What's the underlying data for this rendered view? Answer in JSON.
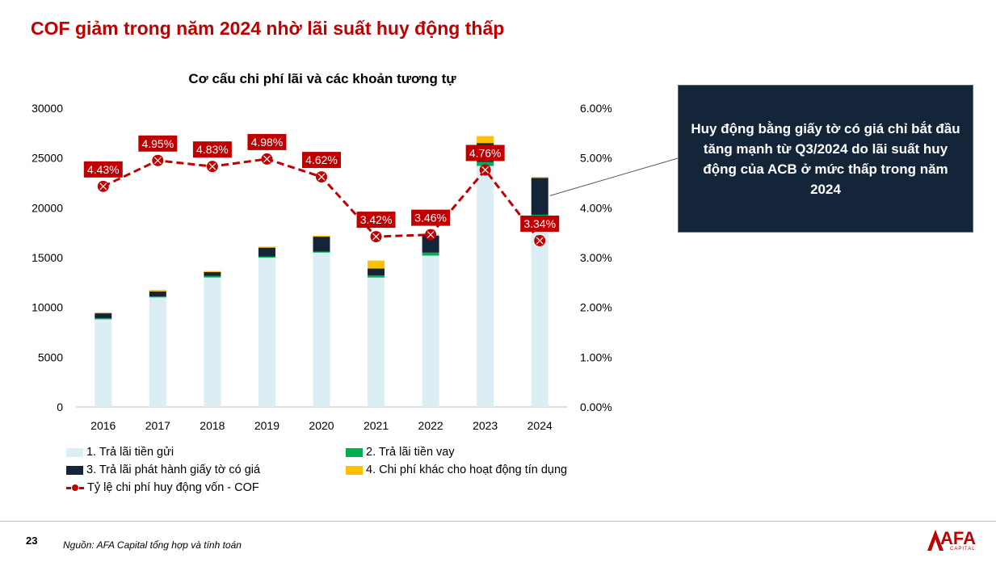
{
  "slide": {
    "title": "COF giảm trong năm 2024 nhờ lãi suất huy động thấp",
    "page_number": "23",
    "source": "Nguồn: AFA Capital tổng hợp và tính toán",
    "logo_text": "AFA",
    "logo_sub": "CAPITAL"
  },
  "callout": {
    "text": "Huy động bằng giấy tờ có giá chỉ bắt đầu tăng mạnh từ Q3/2024 do lãi suất huy động của ACB ở mức thấp trong năm 2024"
  },
  "chart_data": {
    "type": "bar",
    "title": "Cơ cấu chi phí lãi và các khoản tương tự",
    "categories": [
      "2016",
      "2017",
      "2018",
      "2019",
      "2020",
      "2021",
      "2022",
      "2023",
      "2024"
    ],
    "series": [
      {
        "name": "1. Trả lãi tiền gửi",
        "color": "#daeef3",
        "values": [
          8800,
          11000,
          13000,
          15000,
          15500,
          13000,
          15200,
          24200,
          18700
        ]
      },
      {
        "name": "2. Trả lãi tiền vay",
        "color": "#00b050",
        "values": [
          100,
          100,
          150,
          100,
          100,
          200,
          300,
          400,
          600
        ]
      },
      {
        "name": "3. Trả lãi phát hành giấy tờ có giá",
        "color": "#14253a",
        "values": [
          500,
          500,
          400,
          900,
          1500,
          700,
          1700,
          1900,
          3700
        ]
      },
      {
        "name": "4. Chi phí khác cho hoạt động tín dụng",
        "color": "#ffc000",
        "values": [
          100,
          150,
          100,
          100,
          100,
          800,
          100,
          700,
          100
        ]
      }
    ],
    "line_series": {
      "name": "Tỷ lệ chi phí huy động vốn - COF",
      "color": "#c00000",
      "values": [
        4.43,
        4.95,
        4.83,
        4.98,
        4.62,
        3.42,
        3.46,
        4.76,
        3.34
      ],
      "labels": [
        "4.43%",
        "4.95%",
        "4.83%",
        "4.98%",
        "4.62%",
        "3.42%",
        "3.46%",
        "4.76%",
        "3.34%"
      ]
    },
    "y_left": {
      "min": 0,
      "max": 30000,
      "ticks": [
        "0",
        "5000",
        "10000",
        "15000",
        "20000",
        "25000",
        "30000"
      ]
    },
    "y_right": {
      "min": 0,
      "max": 6,
      "ticks": [
        "0.00%",
        "1.00%",
        "2.00%",
        "3.00%",
        "4.00%",
        "5.00%",
        "6.00%"
      ]
    },
    "grid": false,
    "legend_position": "bottom"
  }
}
